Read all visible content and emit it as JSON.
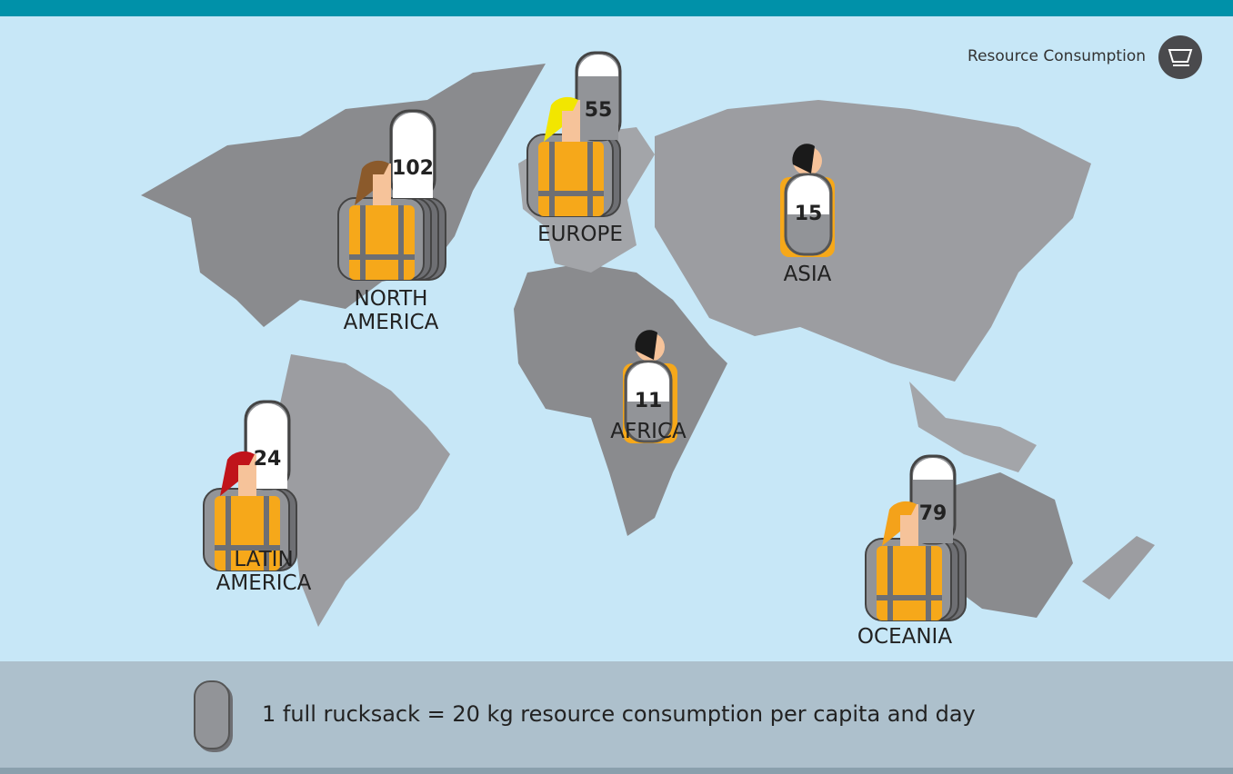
{
  "header": {
    "title": "Resource Consumption"
  },
  "regions": [
    {
      "name": "NORTH AMERICA",
      "value": "102"
    },
    {
      "name": "EUROPE",
      "value": "55"
    },
    {
      "name": "ASIA",
      "value": "15"
    },
    {
      "name": "AFRICA",
      "value": "11"
    },
    {
      "name": "LATIN AMERICA",
      "value": "24"
    },
    {
      "name": "OCEANIA",
      "value": "79"
    }
  ],
  "legend": {
    "text": "1 full rucksack = 20 kg resource consumption per capita and day"
  }
}
